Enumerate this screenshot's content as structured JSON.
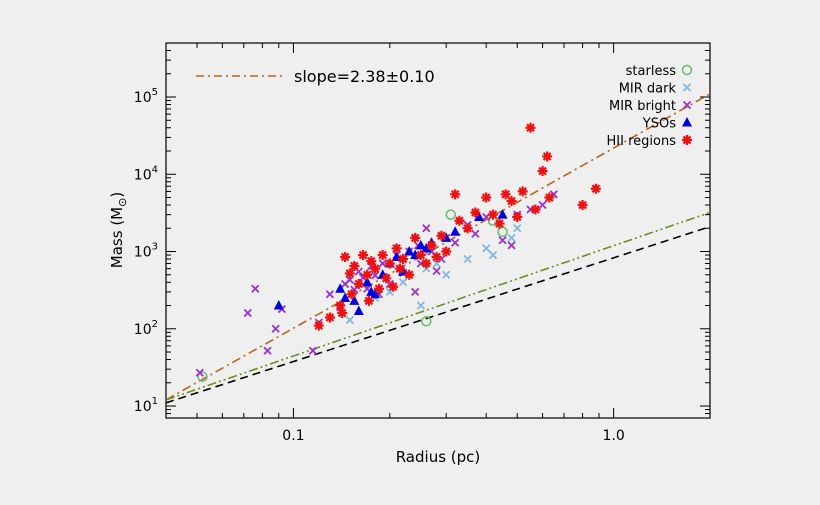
{
  "chart_data": {
    "type": "scatter",
    "title": "",
    "xlabel": "Radius (pc)",
    "ylabel_main": "Mass (M",
    "ylabel_sub": "⊙",
    "ylabel_close": ")",
    "x_scale": "log",
    "y_scale": "log",
    "xlim": [
      0.04,
      2.0
    ],
    "ylim": [
      7,
      500000
    ],
    "x_ticks": [
      {
        "value": 0.1,
        "label": "0.1"
      },
      {
        "value": 1.0,
        "label": "1.0"
      }
    ],
    "y_ticks": [
      {
        "value": 10,
        "base": "10",
        "exp": "1"
      },
      {
        "value": 100,
        "base": "10",
        "exp": "2"
      },
      {
        "value": 1000,
        "base": "10",
        "exp": "3"
      },
      {
        "value": 10000,
        "base": "10",
        "exp": "4"
      },
      {
        "value": 100000,
        "base": "10",
        "exp": "5"
      }
    ],
    "grid": false,
    "legend_position": "top-right",
    "annotation": "slope=2.38±0.10",
    "lines": [
      {
        "id": "fit",
        "style": "dash-dot",
        "color": "#b5651d",
        "x": [
          0.04,
          2.0
        ],
        "y": [
          12,
          110000
        ]
      },
      {
        "id": "threshold-green",
        "style": "dash-dot-dot",
        "color": "#6b8e23",
        "x": [
          0.04,
          2.0
        ],
        "y": [
          12,
          3200
        ]
      },
      {
        "id": "threshold-black",
        "style": "dashed",
        "color": "#000000",
        "x": [
          0.04,
          2.0
        ],
        "y": [
          11,
          2100
        ]
      }
    ],
    "series": [
      {
        "name": "starless",
        "marker": "circle",
        "color": "#66bb66",
        "points": [
          [
            0.052,
            24
          ],
          [
            0.26,
            125
          ],
          [
            0.31,
            3000
          ],
          [
            0.42,
            2500
          ],
          [
            0.45,
            1800
          ]
        ]
      },
      {
        "name": "MIR dark",
        "marker": "x",
        "color": "#7fb8e0",
        "points": [
          [
            0.15,
            130
          ],
          [
            0.18,
            250
          ],
          [
            0.2,
            300
          ],
          [
            0.22,
            400
          ],
          [
            0.25,
            200
          ],
          [
            0.26,
            600
          ],
          [
            0.28,
            700
          ],
          [
            0.3,
            500
          ],
          [
            0.35,
            800
          ],
          [
            0.4,
            1100
          ],
          [
            0.42,
            900
          ],
          [
            0.48,
            1500
          ],
          [
            0.5,
            2000
          ]
        ]
      },
      {
        "name": "MIR bright",
        "marker": "x",
        "color": "#9933cc",
        "points": [
          [
            0.051,
            27
          ],
          [
            0.072,
            160
          ],
          [
            0.076,
            330
          ],
          [
            0.083,
            52
          ],
          [
            0.088,
            100
          ],
          [
            0.092,
            180
          ],
          [
            0.115,
            52
          ],
          [
            0.12,
            120
          ],
          [
            0.13,
            280
          ],
          [
            0.14,
            190
          ],
          [
            0.145,
            380
          ],
          [
            0.15,
            430
          ],
          [
            0.155,
            320
          ],
          [
            0.16,
            550
          ],
          [
            0.165,
            460
          ],
          [
            0.17,
            330
          ],
          [
            0.175,
            650
          ],
          [
            0.18,
            490
          ],
          [
            0.185,
            280
          ],
          [
            0.19,
            700
          ],
          [
            0.2,
            380
          ],
          [
            0.21,
            900
          ],
          [
            0.22,
            530
          ],
          [
            0.23,
            1000
          ],
          [
            0.24,
            300
          ],
          [
            0.245,
            1200
          ],
          [
            0.25,
            700
          ],
          [
            0.26,
            2000
          ],
          [
            0.27,
            1000
          ],
          [
            0.28,
            560
          ],
          [
            0.29,
            800
          ],
          [
            0.3,
            1500
          ],
          [
            0.32,
            1300
          ],
          [
            0.35,
            2200
          ],
          [
            0.37,
            1700
          ],
          [
            0.4,
            2800
          ],
          [
            0.45,
            1400
          ],
          [
            0.48,
            1200
          ],
          [
            0.5,
            3000
          ],
          [
            0.55,
            3500
          ],
          [
            0.6,
            4000
          ],
          [
            0.65,
            5500
          ]
        ]
      },
      {
        "name": "YSOs",
        "marker": "triangle",
        "color": "#0000dd",
        "points": [
          [
            0.09,
            200
          ],
          [
            0.14,
            330
          ],
          [
            0.145,
            250
          ],
          [
            0.155,
            230
          ],
          [
            0.16,
            170
          ],
          [
            0.17,
            400
          ],
          [
            0.175,
            300
          ],
          [
            0.18,
            280
          ],
          [
            0.19,
            500
          ],
          [
            0.2,
            700
          ],
          [
            0.21,
            850
          ],
          [
            0.22,
            550
          ],
          [
            0.23,
            1000
          ],
          [
            0.24,
            900
          ],
          [
            0.25,
            1200
          ],
          [
            0.26,
            1100
          ],
          [
            0.27,
            1300
          ],
          [
            0.3,
            1500
          ],
          [
            0.32,
            1800
          ],
          [
            0.38,
            2800
          ],
          [
            0.45,
            3000
          ]
        ]
      },
      {
        "name": "HII regions",
        "marker": "asterisk",
        "color": "#ee1111",
        "points": [
          [
            0.12,
            110
          ],
          [
            0.13,
            140
          ],
          [
            0.14,
            200
          ],
          [
            0.142,
            160
          ],
          [
            0.145,
            850
          ],
          [
            0.15,
            520
          ],
          [
            0.152,
            280
          ],
          [
            0.155,
            650
          ],
          [
            0.16,
            380
          ],
          [
            0.165,
            900
          ],
          [
            0.17,
            500
          ],
          [
            0.172,
            230
          ],
          [
            0.175,
            750
          ],
          [
            0.18,
            600
          ],
          [
            0.185,
            330
          ],
          [
            0.19,
            900
          ],
          [
            0.195,
            450
          ],
          [
            0.2,
            700
          ],
          [
            0.205,
            350
          ],
          [
            0.21,
            1100
          ],
          [
            0.215,
            600
          ],
          [
            0.22,
            800
          ],
          [
            0.23,
            500
          ],
          [
            0.24,
            1500
          ],
          [
            0.25,
            900
          ],
          [
            0.26,
            700
          ],
          [
            0.27,
            1200
          ],
          [
            0.28,
            850
          ],
          [
            0.29,
            1600
          ],
          [
            0.3,
            1000
          ],
          [
            0.32,
            5500
          ],
          [
            0.33,
            2500
          ],
          [
            0.35,
            2000
          ],
          [
            0.37,
            3200
          ],
          [
            0.4,
            5000
          ],
          [
            0.42,
            3000
          ],
          [
            0.44,
            2300
          ],
          [
            0.46,
            5500
          ],
          [
            0.48,
            4500
          ],
          [
            0.5,
            2800
          ],
          [
            0.52,
            6000
          ],
          [
            0.55,
            40000
          ],
          [
            0.57,
            3500
          ],
          [
            0.6,
            11000
          ],
          [
            0.62,
            17000
          ],
          [
            0.63,
            5000
          ],
          [
            0.8,
            4000
          ],
          [
            0.88,
            6500
          ]
        ]
      }
    ]
  }
}
